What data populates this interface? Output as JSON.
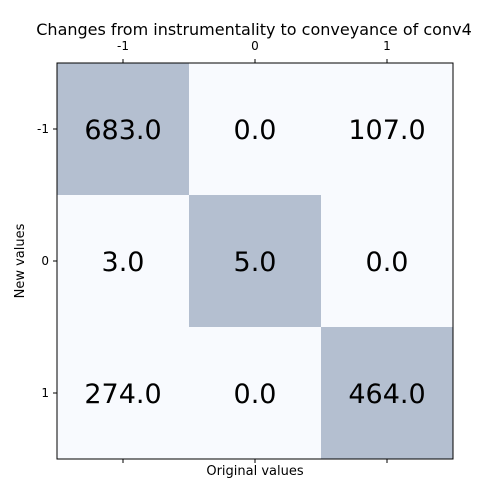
{
  "chart_data": {
    "type": "heatmap",
    "title": "Changes from instrumentality to conveyance of conv4",
    "xlabel": "Original values",
    "ylabel": "New values",
    "x_categories": [
      "-1",
      "0",
      "1"
    ],
    "y_categories": [
      "-1",
      "0",
      "1"
    ],
    "values": [
      [
        683.0,
        0.0,
        107.0
      ],
      [
        3.0,
        5.0,
        0.0
      ],
      [
        274.0,
        0.0,
        464.0
      ]
    ],
    "cell_labels": [
      [
        "683.0",
        "0.0",
        "107.0"
      ],
      [
        "3.0",
        "5.0",
        "0.0"
      ],
      [
        "274.0",
        "0.0",
        "464.0"
      ]
    ],
    "highlighted_cells": [
      [
        0,
        0
      ],
      [
        1,
        1
      ],
      [
        2,
        2
      ]
    ],
    "colors": {
      "highlight": "#b4bfd0",
      "background": "#f8fafe",
      "frame": "#000000"
    }
  }
}
